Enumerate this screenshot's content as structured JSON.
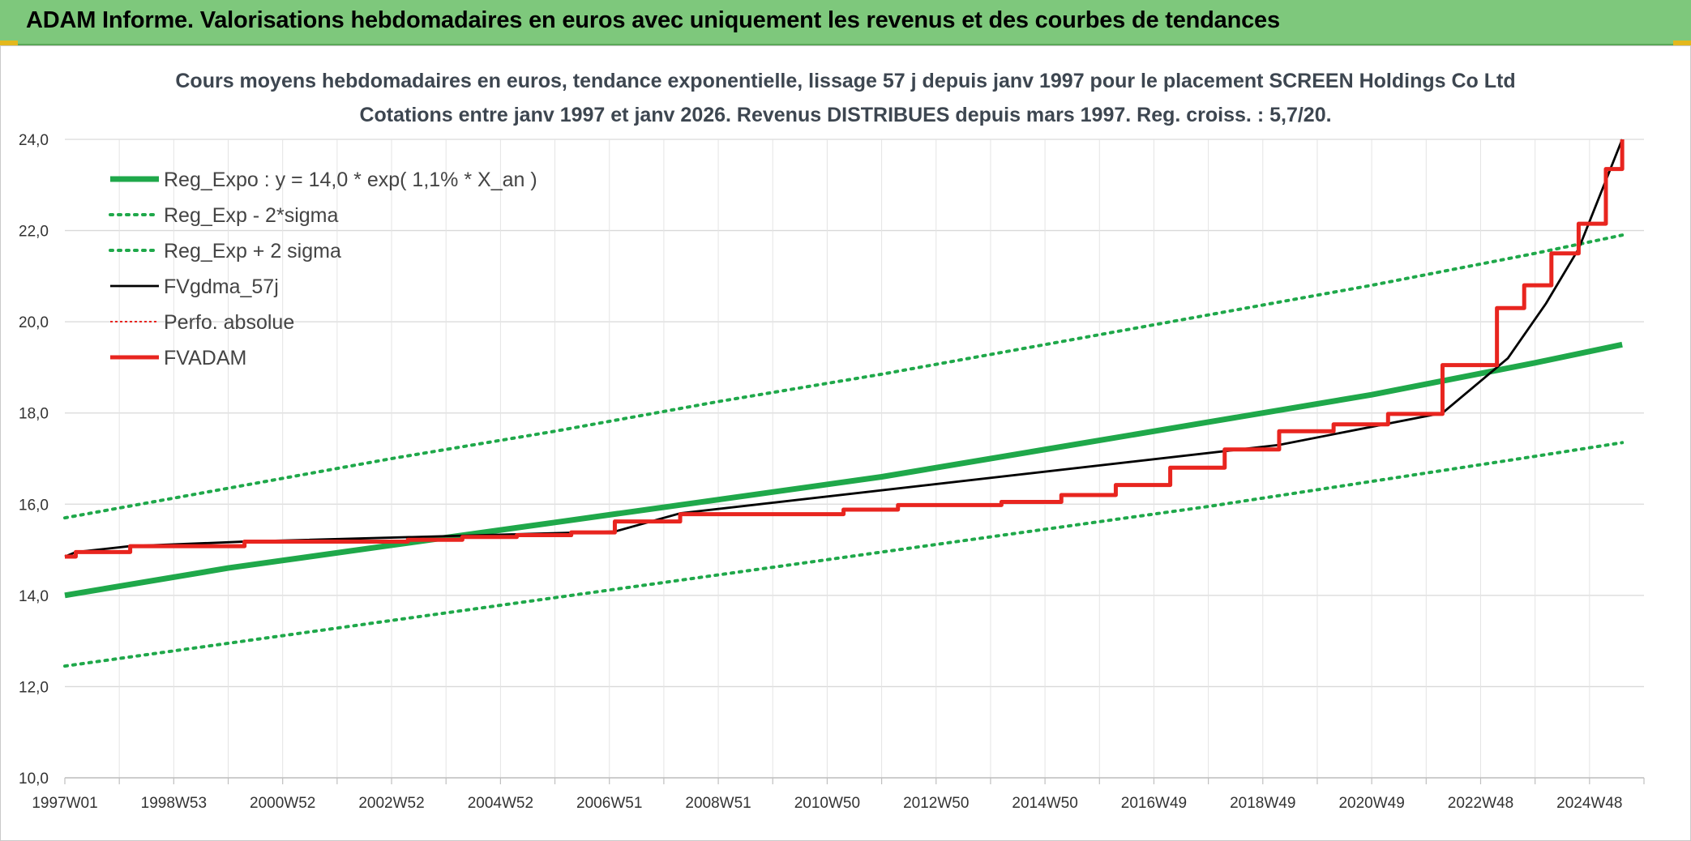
{
  "banner": {
    "title": "ADAM Informe. Valorisations hebdomadaires en euros avec uniquement les revenus et des courbes de tendances"
  },
  "chart_data": {
    "type": "line",
    "title": "Cours moyens hebdomadaires en euros, tendance exponentielle, lissage 57 j depuis janv 1997 pour le placement SCREEN Holdings Co Ltd",
    "subtitle": "Cotations entre janv 1997 et janv 2026. Revenus DISTRIBUES depuis mars 1997. Reg. croiss. : 5,7/20.",
    "ylim": [
      10,
      24
    ],
    "xlim": [
      1997.0,
      2026.0
    ],
    "grid": true,
    "legend_position": "top-left",
    "y_ticks": [
      "10,0",
      "12,0",
      "14,0",
      "16,0",
      "18,0",
      "20,0",
      "22,0",
      "24,0"
    ],
    "x_ticks": [
      {
        "label": "1997W01",
        "x": 1997.0
      },
      {
        "label": "1998W53",
        "x": 1999.0
      },
      {
        "label": "2000W52",
        "x": 2001.0
      },
      {
        "label": "2002W52",
        "x": 2003.0
      },
      {
        "label": "2004W52",
        "x": 2005.0
      },
      {
        "label": "2006W51",
        "x": 2007.0
      },
      {
        "label": "2008W51",
        "x": 2009.0
      },
      {
        "label": "2010W50",
        "x": 2011.0
      },
      {
        "label": "2012W50",
        "x": 2013.0
      },
      {
        "label": "2014W50",
        "x": 2015.0
      },
      {
        "label": "2016W49",
        "x": 2017.0
      },
      {
        "label": "2018W49",
        "x": 2019.0
      },
      {
        "label": "2020W49",
        "x": 2021.0
      },
      {
        "label": "2022W48",
        "x": 2023.0
      },
      {
        "label": "2024W48",
        "x": 2025.0
      }
    ],
    "series": [
      {
        "name": "Reg_Expo : y = 14,0 * exp( 1,1% *  X_an )",
        "color": "#1fa84a",
        "style": "solid-thick",
        "x": [
          1997.0,
          2000.0,
          2003.0,
          2006.0,
          2009.0,
          2012.0,
          2015.0,
          2018.0,
          2021.0,
          2024.0,
          2025.6
        ],
        "y": [
          14.0,
          14.6,
          15.1,
          15.6,
          16.1,
          16.6,
          17.2,
          17.8,
          18.4,
          19.1,
          19.5
        ]
      },
      {
        "name": "Reg_Exp - 2*sigma",
        "color": "#1fa84a",
        "style": "dotted",
        "x": [
          1997.0,
          2000.0,
          2003.0,
          2006.0,
          2009.0,
          2012.0,
          2015.0,
          2018.0,
          2021.0,
          2024.0,
          2025.6
        ],
        "y": [
          12.45,
          12.95,
          13.45,
          13.95,
          14.45,
          14.95,
          15.45,
          15.95,
          16.5,
          17.05,
          17.35
        ]
      },
      {
        "name": "Reg_Exp + 2 sigma",
        "color": "#1fa84a",
        "style": "dotted",
        "x": [
          1997.0,
          2000.0,
          2003.0,
          2006.0,
          2009.0,
          2012.0,
          2015.0,
          2018.0,
          2021.0,
          2024.0,
          2025.6
        ],
        "y": [
          15.7,
          16.35,
          17.0,
          17.6,
          18.25,
          18.85,
          19.5,
          20.15,
          20.8,
          21.5,
          21.9
        ]
      },
      {
        "name": "FVgdma_57j",
        "color": "#000000",
        "style": "solid-smooth",
        "x": [
          1997.0,
          1997.2,
          1998.2,
          2000.3,
          2007.1,
          2008.3,
          2019.3,
          2022.3,
          2023.5,
          2024.2,
          2024.8,
          2025.4,
          2025.6
        ],
        "y": [
          14.85,
          14.95,
          15.08,
          15.18,
          15.4,
          15.8,
          17.3,
          18.0,
          19.2,
          20.4,
          21.6,
          23.4,
          24.0
        ]
      },
      {
        "name": "Perfo. absolue",
        "color": "#e8251f",
        "style": "dotted-thin",
        "x": [],
        "y": []
      },
      {
        "name": "FVADAM",
        "color": "#e8251f",
        "style": "step",
        "x": [
          1997.0,
          1997.2,
          1998.2,
          2000.3,
          2003.3,
          2004.3,
          2005.3,
          2006.3,
          2007.1,
          2008.3,
          2011.3,
          2012.3,
          2014.2,
          2015.3,
          2016.3,
          2017.3,
          2018.3,
          2019.3,
          2020.3,
          2021.3,
          2022.3,
          2023.3,
          2023.8,
          2024.3,
          2024.8,
          2025.3
        ],
        "y": [
          14.85,
          14.95,
          15.08,
          15.18,
          15.22,
          15.28,
          15.32,
          15.38,
          15.62,
          15.78,
          15.88,
          15.98,
          16.05,
          16.2,
          16.42,
          16.8,
          17.2,
          17.6,
          17.75,
          17.98,
          19.05,
          20.3,
          20.8,
          21.5,
          22.15,
          23.35
        ],
        "end_x": 2025.6,
        "end_y": 24.0
      }
    ]
  }
}
